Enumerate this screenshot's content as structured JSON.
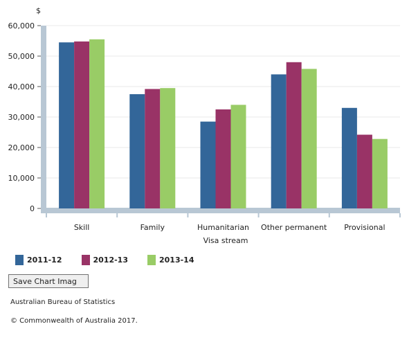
{
  "chart_data": {
    "type": "bar",
    "title": "",
    "ylabel": "$",
    "xlabel": "Visa stream",
    "categories": [
      "Skill",
      "Family",
      "Humanitarian",
      "Other permanent",
      "Provisional"
    ],
    "series": [
      {
        "name": "2011-12",
        "color": "#336699",
        "values": [
          54500,
          37500,
          28500,
          44000,
          33000
        ]
      },
      {
        "name": "2012-13",
        "color": "#993366",
        "values": [
          54800,
          39200,
          32500,
          48000,
          24200
        ]
      },
      {
        "name": "2013-14",
        "color": "#99cc66",
        "values": [
          55500,
          39500,
          34000,
          45800,
          22800
        ]
      }
    ],
    "ylim": [
      0,
      60000
    ],
    "yticks": [
      0,
      10000,
      20000,
      30000,
      40000,
      50000,
      60000
    ],
    "ytick_labels": [
      "0",
      "10,000",
      "20,000",
      "30,000",
      "40,000",
      "50,000",
      "60,000"
    ],
    "grid": true,
    "legend_position": "bottom-left"
  },
  "buttons": {
    "save_chart_label": "Save Chart Imag"
  },
  "footer": {
    "source": "Australian Bureau of Statistics",
    "copyright": "© Commonwealth of Australia 2017."
  },
  "colors": {
    "axis_frame": "#b8c7d4",
    "gridline": "#e8e8e8"
  }
}
